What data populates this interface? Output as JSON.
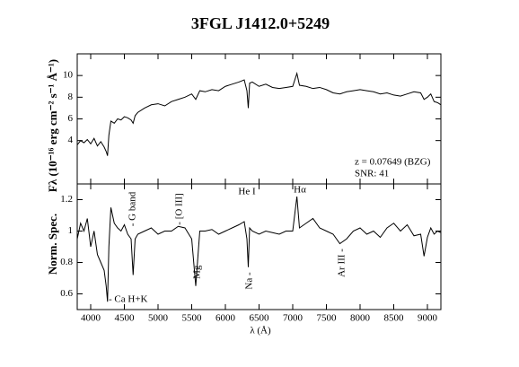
{
  "chart_data": [
    {
      "type": "line",
      "title": "3FGL J1412.0+5249",
      "ylabel": "Fλ (10⁻¹⁶ erg cm⁻² s⁻¹ Å⁻¹)",
      "annotations": [
        "z = 0.07649 (BZG)",
        "SNR: 41"
      ],
      "color": "#000000",
      "x": [
        3800,
        3850,
        3900,
        3950,
        4000,
        4050,
        4100,
        4150,
        4200,
        4230,
        4250,
        4270,
        4300,
        4350,
        4400,
        4450,
        4500,
        4550,
        4600,
        4630,
        4660,
        4700,
        4800,
        4900,
        5000,
        5100,
        5200,
        5300,
        5400,
        5500,
        5560,
        5620,
        5700,
        5800,
        5900,
        6000,
        6100,
        6200,
        6280,
        6320,
        6340,
        6360,
        6400,
        6500,
        6600,
        6700,
        6800,
        6900,
        7000,
        7062,
        7100,
        7200,
        7300,
        7400,
        7500,
        7600,
        7700,
        7800,
        7900,
        8000,
        8100,
        8200,
        8300,
        8400,
        8500,
        8600,
        8700,
        8800,
        8900,
        8950,
        9000,
        9050,
        9100,
        9150,
        9200
      ],
      "values": [
        3.6,
        4.0,
        3.8,
        4.1,
        3.7,
        4.2,
        3.5,
        3.9,
        3.4,
        3.0,
        2.6,
        4.5,
        5.8,
        5.6,
        6.0,
        5.9,
        6.2,
        6.1,
        5.9,
        5.6,
        6.3,
        6.6,
        7.0,
        7.3,
        7.4,
        7.2,
        7.6,
        7.8,
        8.0,
        8.3,
        7.8,
        8.6,
        8.5,
        8.7,
        8.6,
        9.0,
        9.2,
        9.4,
        9.6,
        8.6,
        7.0,
        9.3,
        9.4,
        9.0,
        9.2,
        8.9,
        8.8,
        8.9,
        9.0,
        10.2,
        9.1,
        9.0,
        8.8,
        8.9,
        8.7,
        8.4,
        8.3,
        8.5,
        8.6,
        8.7,
        8.6,
        8.5,
        8.3,
        8.4,
        8.2,
        8.1,
        8.3,
        8.5,
        8.4,
        7.8,
        8.0,
        8.3,
        7.6,
        7.5,
        7.3
      ],
      "xlim": [
        3800,
        9200
      ],
      "ylim": [
        0,
        12
      ],
      "yticks": [
        4,
        6,
        8,
        10
      ]
    },
    {
      "type": "line",
      "ylabel": "Norm. Spec.",
      "xlabel": "λ (Å)",
      "annotations": [
        "- Ca H+K",
        "- G band",
        "- [O III]",
        "Mg -",
        "He I",
        "Hα",
        "Na -",
        "Ar III -"
      ],
      "color": "#000000",
      "x": [
        3800,
        3850,
        3900,
        3950,
        4000,
        4050,
        4100,
        4150,
        4200,
        4230,
        4250,
        4270,
        4300,
        4350,
        4400,
        4450,
        4500,
        4550,
        4600,
        4630,
        4660,
        4700,
        4800,
        4900,
        5000,
        5100,
        5200,
        5300,
        5400,
        5500,
        5560,
        5620,
        5700,
        5800,
        5900,
        6000,
        6100,
        6200,
        6280,
        6320,
        6340,
        6360,
        6400,
        6500,
        6600,
        6700,
        6800,
        6900,
        7000,
        7062,
        7100,
        7200,
        7300,
        7400,
        7500,
        7600,
        7700,
        7800,
        7900,
        8000,
        8100,
        8200,
        8300,
        8400,
        8500,
        8600,
        8700,
        8800,
        8900,
        8950,
        9000,
        9050,
        9100,
        9150,
        9200
      ],
      "values": [
        0.95,
        1.05,
        1.0,
        1.08,
        0.9,
        1.0,
        0.85,
        0.8,
        0.75,
        0.65,
        0.55,
        0.9,
        1.15,
        1.05,
        1.02,
        1.0,
        1.04,
        0.98,
        0.95,
        0.72,
        0.95,
        0.98,
        1.0,
        1.02,
        0.98,
        1.0,
        1.0,
        1.03,
        1.02,
        0.95,
        0.65,
        1.0,
        1.0,
        1.01,
        0.98,
        1.0,
        1.02,
        1.04,
        1.06,
        0.95,
        0.77,
        1.02,
        1.0,
        0.98,
        1.0,
        0.99,
        0.98,
        1.0,
        1.0,
        1.22,
        1.02,
        1.05,
        1.08,
        1.02,
        1.0,
        0.98,
        0.92,
        0.95,
        1.0,
        1.02,
        0.98,
        1.0,
        0.96,
        1.02,
        1.05,
        1.0,
        1.04,
        0.97,
        0.98,
        0.84,
        0.96,
        1.02,
        0.98,
        1.0,
        0.99
      ],
      "xlim": [
        3800,
        9200
      ],
      "ylim": [
        0.5,
        1.3
      ],
      "yticks": [
        0.6,
        0.8,
        1,
        1.2
      ],
      "xticks": [
        4000,
        4500,
        5000,
        5500,
        6000,
        6500,
        7000,
        7500,
        8000,
        8500,
        9000
      ]
    }
  ]
}
